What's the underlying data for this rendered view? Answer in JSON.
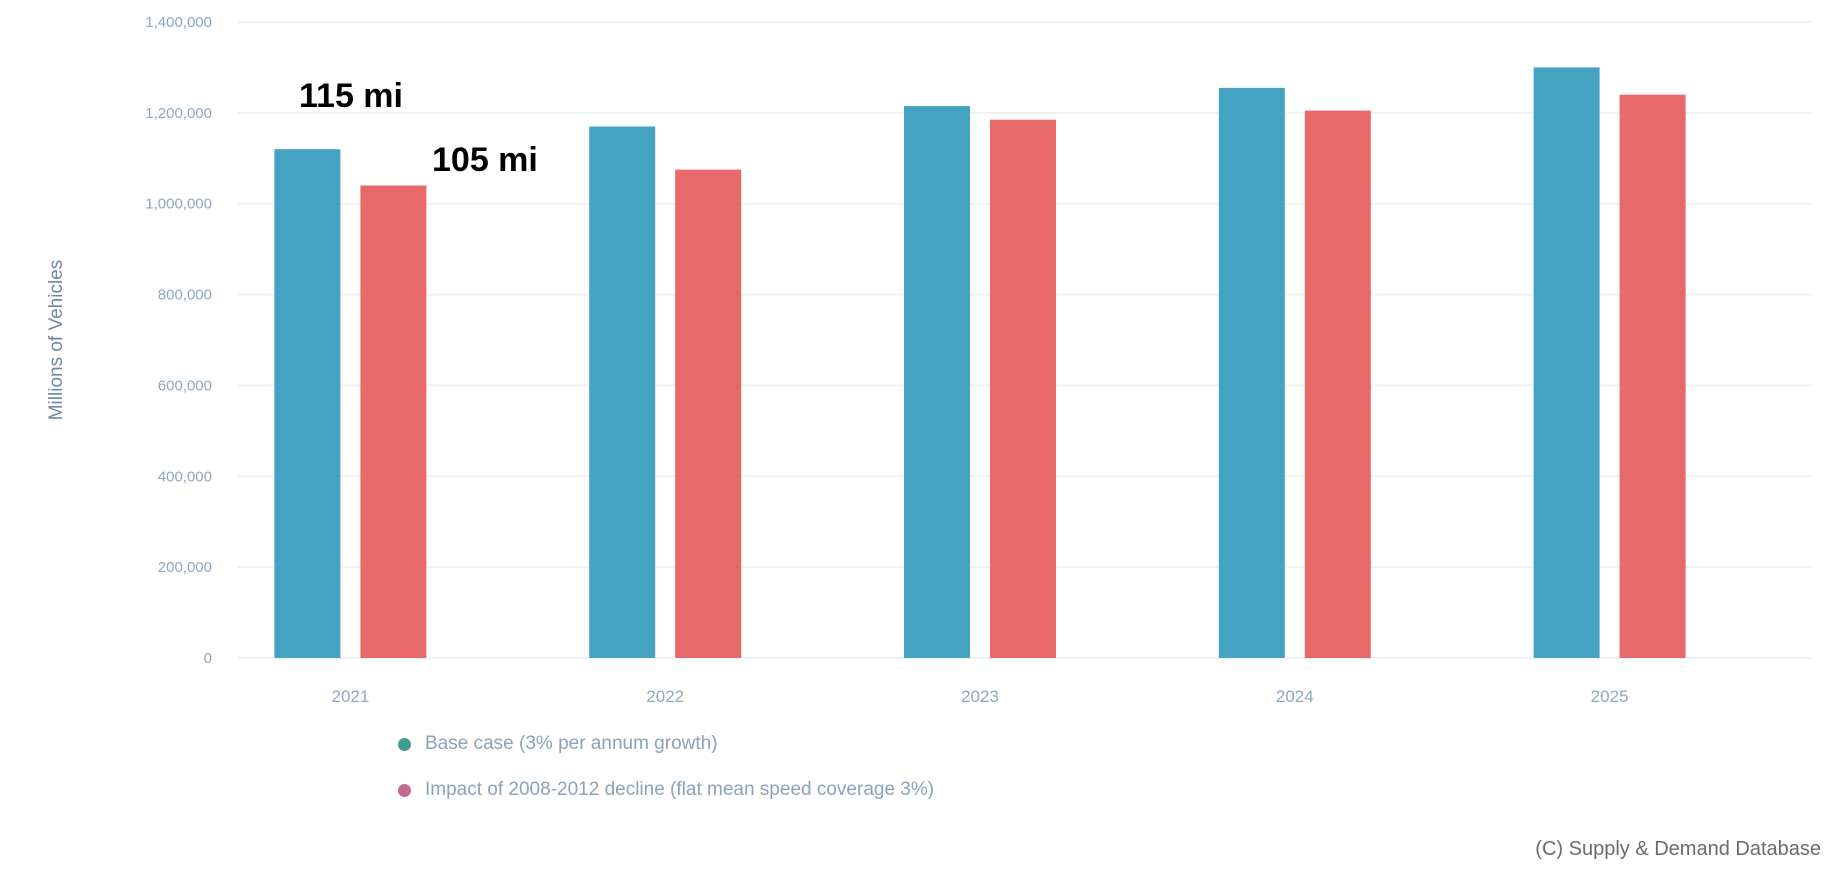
{
  "colors": {
    "series_1": "#44a2c2",
    "series_2": "#e8696a",
    "grid": "#eef1f5",
    "legend_marker_1": "#3f9f8c",
    "legend_marker_2": "#c46a92"
  },
  "chart_data": {
    "type": "bar",
    "title": "",
    "xlabel": "",
    "ylabel": "Millions of Vehicles",
    "ylim": [
      0,
      1400000
    ],
    "yticks": [
      "0",
      "200,000",
      "400,000",
      "600,000",
      "800,000",
      "1,000,000",
      "1,200,000",
      "1,400,000"
    ],
    "categories": [
      "2021",
      "2022",
      "2023",
      "2024",
      "2025"
    ],
    "series": [
      {
        "name": "Base case (3% per annum growth)",
        "values": [
          1120000,
          1170000,
          1215000,
          1255000,
          1300000
        ]
      },
      {
        "name": "Impact of 2008-2012 decline (flat mean speed coverage 3%)",
        "values": [
          1040000,
          1075000,
          1185000,
          1205000,
          1240000
        ]
      }
    ],
    "grid": true,
    "legend": "bottom-left",
    "annotations": [
      "115 mi",
      "105 mi"
    ]
  },
  "source": "(C) Supply & Demand Database"
}
